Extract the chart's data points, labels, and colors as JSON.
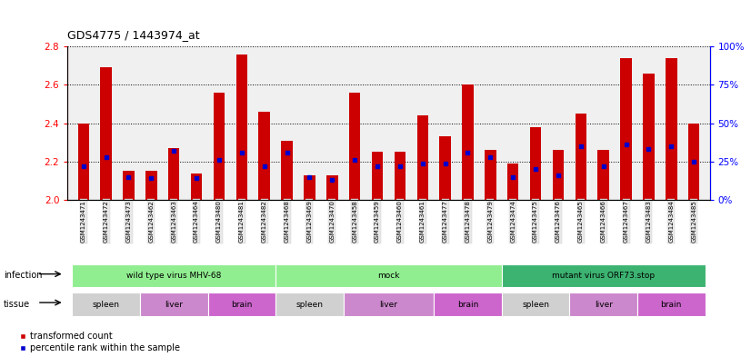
{
  "title": "GDS4775 / 1443974_at",
  "samples": [
    "GSM1243471",
    "GSM1243472",
    "GSM1243473",
    "GSM1243462",
    "GSM1243463",
    "GSM1243464",
    "GSM1243480",
    "GSM1243481",
    "GSM1243482",
    "GSM1243468",
    "GSM1243469",
    "GSM1243470",
    "GSM1243458",
    "GSM1243459",
    "GSM1243460",
    "GSM1243461",
    "GSM1243477",
    "GSM1243478",
    "GSM1243479",
    "GSM1243474",
    "GSM1243475",
    "GSM1243476",
    "GSM1243465",
    "GSM1243466",
    "GSM1243467",
    "GSM1243483",
    "GSM1243484",
    "GSM1243485"
  ],
  "transformed_count": [
    2.4,
    2.69,
    2.15,
    2.15,
    2.27,
    2.14,
    2.56,
    2.76,
    2.46,
    2.31,
    2.13,
    2.13,
    2.56,
    2.25,
    2.25,
    2.44,
    2.33,
    2.6,
    2.26,
    2.19,
    2.38,
    2.26,
    2.45,
    2.26,
    2.74,
    2.66,
    2.74,
    2.4
  ],
  "percentile_rank": [
    22,
    28,
    15,
    14,
    32,
    14,
    26,
    31,
    22,
    31,
    15,
    13,
    26,
    22,
    22,
    24,
    24,
    31,
    28,
    15,
    20,
    16,
    35,
    22,
    36,
    33,
    35,
    25
  ],
  "infection_groups": [
    {
      "label": "wild type virus MHV-68",
      "start": 0,
      "end": 9,
      "color": "#90EE90"
    },
    {
      "label": "mock",
      "start": 9,
      "end": 19,
      "color": "#90EE90"
    },
    {
      "label": "mutant virus ORF73.stop",
      "start": 19,
      "end": 28,
      "color": "#3CB371"
    }
  ],
  "tissue_groups": [
    {
      "label": "spleen",
      "start": 0,
      "end": 3,
      "type": "spleen"
    },
    {
      "label": "liver",
      "start": 3,
      "end": 6,
      "type": "liver"
    },
    {
      "label": "brain",
      "start": 6,
      "end": 9,
      "type": "brain"
    },
    {
      "label": "spleen",
      "start": 9,
      "end": 12,
      "type": "spleen"
    },
    {
      "label": "liver",
      "start": 12,
      "end": 16,
      "type": "liver"
    },
    {
      "label": "brain",
      "start": 16,
      "end": 19,
      "type": "brain"
    },
    {
      "label": "spleen",
      "start": 19,
      "end": 22,
      "type": "spleen"
    },
    {
      "label": "liver",
      "start": 22,
      "end": 25,
      "type": "liver"
    },
    {
      "label": "brain",
      "start": 25,
      "end": 28,
      "type": "brain"
    }
  ],
  "ylim_left": [
    2.0,
    2.8
  ],
  "ylim_right": [
    0,
    100
  ],
  "yticks_left": [
    2.0,
    2.2,
    2.4,
    2.6,
    2.8
  ],
  "yticks_right": [
    0,
    25,
    50,
    75,
    100
  ],
  "bar_color": "#CC0000",
  "marker_color": "#0000CC",
  "chart_bg": "#F0F0F0",
  "spleen_color": "#D0D0D0",
  "liver_color": "#CC88CC",
  "brain_color": "#CC66CC",
  "infection_color": "#90EE90",
  "infection_color2": "#3CB371"
}
